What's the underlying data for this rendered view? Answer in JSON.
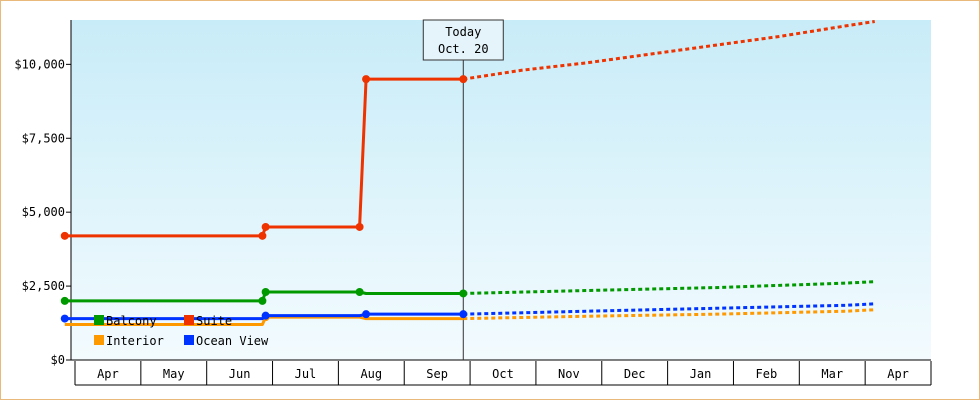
{
  "chart_data": {
    "type": "line",
    "x_categories": [
      "Apr",
      "May",
      "Jun",
      "Jul",
      "Aug",
      "Sep",
      "Oct",
      "Nov",
      "Dec",
      "Jan",
      "Feb",
      "Mar",
      "Apr"
    ],
    "ylim": [
      0,
      11500
    ],
    "yticks": [
      0,
      2500,
      5000,
      7500,
      10000
    ],
    "ytick_labels": [
      "$0",
      "$2,500",
      "$5,000",
      "$7,500",
      "$10,000"
    ],
    "today_marker": {
      "line1": "Today",
      "line2": "Oct. 20",
      "x": 6.1
    },
    "legend": [
      {
        "label": "Balcony",
        "color": "#009900"
      },
      {
        "label": "Suite",
        "color": "#ee3300"
      },
      {
        "label": "Interior",
        "color": "#ff9900"
      },
      {
        "label": "Ocean View",
        "color": "#0033ff"
      }
    ],
    "series": [
      {
        "name": "Suite",
        "color": "#ee3300",
        "actual": [
          [
            -0.05,
            4200
          ],
          [
            3.0,
            4200
          ],
          [
            3.05,
            4500
          ],
          [
            4.5,
            4500
          ],
          [
            4.6,
            9500
          ],
          [
            6.1,
            9500
          ]
        ],
        "forecast": [
          [
            6.1,
            9500
          ],
          [
            7,
            9800
          ],
          [
            8,
            10050
          ],
          [
            9,
            10350
          ],
          [
            10,
            10650
          ],
          [
            11,
            10950
          ],
          [
            12,
            11300
          ],
          [
            12.45,
            11450
          ]
        ]
      },
      {
        "name": "Balcony",
        "color": "#009900",
        "actual": [
          [
            -0.05,
            2000
          ],
          [
            3.0,
            2000
          ],
          [
            3.05,
            2300
          ],
          [
            4.5,
            2300
          ],
          [
            4.6,
            2250
          ],
          [
            6.1,
            2250
          ]
        ],
        "forecast": [
          [
            6.1,
            2250
          ],
          [
            8,
            2350
          ],
          [
            10,
            2450
          ],
          [
            12,
            2600
          ],
          [
            12.45,
            2650
          ]
        ]
      },
      {
        "name": "Ocean View",
        "color": "#0033ff",
        "actual": [
          [
            -0.05,
            1400
          ],
          [
            3.0,
            1400
          ],
          [
            3.05,
            1500
          ],
          [
            4.5,
            1500
          ],
          [
            4.6,
            1550
          ],
          [
            6.1,
            1550
          ]
        ],
        "forecast": [
          [
            6.1,
            1550
          ],
          [
            8,
            1650
          ],
          [
            10,
            1750
          ],
          [
            12,
            1850
          ],
          [
            12.45,
            1900
          ]
        ]
      },
      {
        "name": "Interior",
        "color": "#ff9900",
        "actual": [
          [
            -0.05,
            1200
          ],
          [
            3.0,
            1200
          ],
          [
            3.05,
            1450
          ],
          [
            4.5,
            1450
          ],
          [
            4.6,
            1400
          ],
          [
            6.1,
            1400
          ]
        ],
        "forecast": [
          [
            6.1,
            1400
          ],
          [
            8,
            1480
          ],
          [
            10,
            1550
          ],
          [
            12,
            1650
          ],
          [
            12.45,
            1700
          ]
        ]
      }
    ],
    "markers": {
      "Suite": [
        [
          -0.05,
          4200
        ],
        [
          3.0,
          4200
        ],
        [
          3.05,
          4500
        ],
        [
          4.5,
          4500
        ],
        [
          4.6,
          9500
        ],
        [
          6.1,
          9500
        ]
      ],
      "Balcony": [
        [
          -0.05,
          2000
        ],
        [
          3.0,
          2000
        ],
        [
          3.05,
          2300
        ],
        [
          4.5,
          2300
        ],
        [
          6.1,
          2250
        ]
      ],
      "Ocean View": [
        [
          -0.05,
          1400
        ],
        [
          3.05,
          1500
        ],
        [
          4.6,
          1550
        ],
        [
          6.1,
          1550
        ]
      ],
      "Interior": [
        [
          3.05,
          1450
        ]
      ]
    }
  }
}
